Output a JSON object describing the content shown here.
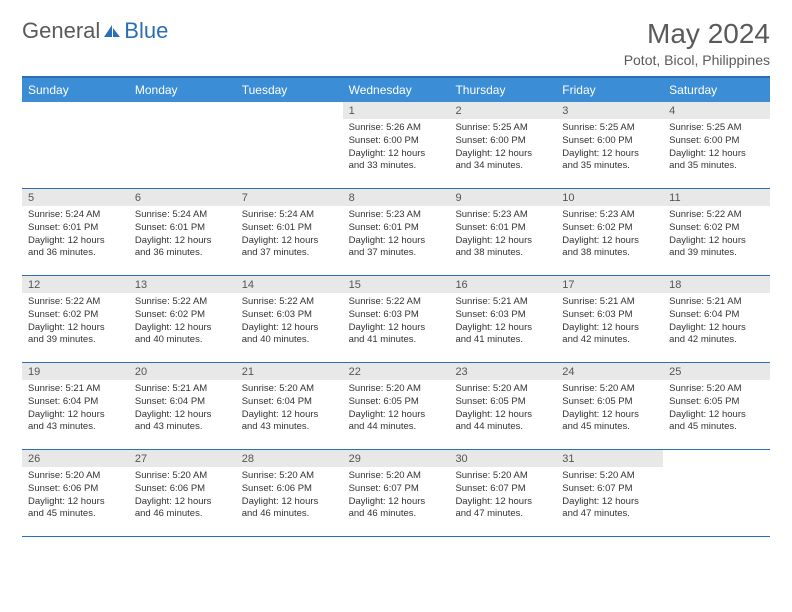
{
  "brand": {
    "text1": "General",
    "text2": "Blue"
  },
  "title": "May 2024",
  "location": "Potot, Bicol, Philippines",
  "colors": {
    "header_bar": "#3b8dd6",
    "border": "#2a6fb5",
    "daynum_bg": "#e8e8e8",
    "text": "#333333",
    "muted": "#5a5a5a"
  },
  "day_headers": [
    "Sunday",
    "Monday",
    "Tuesday",
    "Wednesday",
    "Thursday",
    "Friday",
    "Saturday"
  ],
  "weeks": [
    [
      {
        "n": "",
        "sunrise": "",
        "sunset": "",
        "daylight": ""
      },
      {
        "n": "",
        "sunrise": "",
        "sunset": "",
        "daylight": ""
      },
      {
        "n": "",
        "sunrise": "",
        "sunset": "",
        "daylight": ""
      },
      {
        "n": "1",
        "sunrise": "Sunrise: 5:26 AM",
        "sunset": "Sunset: 6:00 PM",
        "daylight": "Daylight: 12 hours and 33 minutes."
      },
      {
        "n": "2",
        "sunrise": "Sunrise: 5:25 AM",
        "sunset": "Sunset: 6:00 PM",
        "daylight": "Daylight: 12 hours and 34 minutes."
      },
      {
        "n": "3",
        "sunrise": "Sunrise: 5:25 AM",
        "sunset": "Sunset: 6:00 PM",
        "daylight": "Daylight: 12 hours and 35 minutes."
      },
      {
        "n": "4",
        "sunrise": "Sunrise: 5:25 AM",
        "sunset": "Sunset: 6:00 PM",
        "daylight": "Daylight: 12 hours and 35 minutes."
      }
    ],
    [
      {
        "n": "5",
        "sunrise": "Sunrise: 5:24 AM",
        "sunset": "Sunset: 6:01 PM",
        "daylight": "Daylight: 12 hours and 36 minutes."
      },
      {
        "n": "6",
        "sunrise": "Sunrise: 5:24 AM",
        "sunset": "Sunset: 6:01 PM",
        "daylight": "Daylight: 12 hours and 36 minutes."
      },
      {
        "n": "7",
        "sunrise": "Sunrise: 5:24 AM",
        "sunset": "Sunset: 6:01 PM",
        "daylight": "Daylight: 12 hours and 37 minutes."
      },
      {
        "n": "8",
        "sunrise": "Sunrise: 5:23 AM",
        "sunset": "Sunset: 6:01 PM",
        "daylight": "Daylight: 12 hours and 37 minutes."
      },
      {
        "n": "9",
        "sunrise": "Sunrise: 5:23 AM",
        "sunset": "Sunset: 6:01 PM",
        "daylight": "Daylight: 12 hours and 38 minutes."
      },
      {
        "n": "10",
        "sunrise": "Sunrise: 5:23 AM",
        "sunset": "Sunset: 6:02 PM",
        "daylight": "Daylight: 12 hours and 38 minutes."
      },
      {
        "n": "11",
        "sunrise": "Sunrise: 5:22 AM",
        "sunset": "Sunset: 6:02 PM",
        "daylight": "Daylight: 12 hours and 39 minutes."
      }
    ],
    [
      {
        "n": "12",
        "sunrise": "Sunrise: 5:22 AM",
        "sunset": "Sunset: 6:02 PM",
        "daylight": "Daylight: 12 hours and 39 minutes."
      },
      {
        "n": "13",
        "sunrise": "Sunrise: 5:22 AM",
        "sunset": "Sunset: 6:02 PM",
        "daylight": "Daylight: 12 hours and 40 minutes."
      },
      {
        "n": "14",
        "sunrise": "Sunrise: 5:22 AM",
        "sunset": "Sunset: 6:03 PM",
        "daylight": "Daylight: 12 hours and 40 minutes."
      },
      {
        "n": "15",
        "sunrise": "Sunrise: 5:22 AM",
        "sunset": "Sunset: 6:03 PM",
        "daylight": "Daylight: 12 hours and 41 minutes."
      },
      {
        "n": "16",
        "sunrise": "Sunrise: 5:21 AM",
        "sunset": "Sunset: 6:03 PM",
        "daylight": "Daylight: 12 hours and 41 minutes."
      },
      {
        "n": "17",
        "sunrise": "Sunrise: 5:21 AM",
        "sunset": "Sunset: 6:03 PM",
        "daylight": "Daylight: 12 hours and 42 minutes."
      },
      {
        "n": "18",
        "sunrise": "Sunrise: 5:21 AM",
        "sunset": "Sunset: 6:04 PM",
        "daylight": "Daylight: 12 hours and 42 minutes."
      }
    ],
    [
      {
        "n": "19",
        "sunrise": "Sunrise: 5:21 AM",
        "sunset": "Sunset: 6:04 PM",
        "daylight": "Daylight: 12 hours and 43 minutes."
      },
      {
        "n": "20",
        "sunrise": "Sunrise: 5:21 AM",
        "sunset": "Sunset: 6:04 PM",
        "daylight": "Daylight: 12 hours and 43 minutes."
      },
      {
        "n": "21",
        "sunrise": "Sunrise: 5:20 AM",
        "sunset": "Sunset: 6:04 PM",
        "daylight": "Daylight: 12 hours and 43 minutes."
      },
      {
        "n": "22",
        "sunrise": "Sunrise: 5:20 AM",
        "sunset": "Sunset: 6:05 PM",
        "daylight": "Daylight: 12 hours and 44 minutes."
      },
      {
        "n": "23",
        "sunrise": "Sunrise: 5:20 AM",
        "sunset": "Sunset: 6:05 PM",
        "daylight": "Daylight: 12 hours and 44 minutes."
      },
      {
        "n": "24",
        "sunrise": "Sunrise: 5:20 AM",
        "sunset": "Sunset: 6:05 PM",
        "daylight": "Daylight: 12 hours and 45 minutes."
      },
      {
        "n": "25",
        "sunrise": "Sunrise: 5:20 AM",
        "sunset": "Sunset: 6:05 PM",
        "daylight": "Daylight: 12 hours and 45 minutes."
      }
    ],
    [
      {
        "n": "26",
        "sunrise": "Sunrise: 5:20 AM",
        "sunset": "Sunset: 6:06 PM",
        "daylight": "Daylight: 12 hours and 45 minutes."
      },
      {
        "n": "27",
        "sunrise": "Sunrise: 5:20 AM",
        "sunset": "Sunset: 6:06 PM",
        "daylight": "Daylight: 12 hours and 46 minutes."
      },
      {
        "n": "28",
        "sunrise": "Sunrise: 5:20 AM",
        "sunset": "Sunset: 6:06 PM",
        "daylight": "Daylight: 12 hours and 46 minutes."
      },
      {
        "n": "29",
        "sunrise": "Sunrise: 5:20 AM",
        "sunset": "Sunset: 6:07 PM",
        "daylight": "Daylight: 12 hours and 46 minutes."
      },
      {
        "n": "30",
        "sunrise": "Sunrise: 5:20 AM",
        "sunset": "Sunset: 6:07 PM",
        "daylight": "Daylight: 12 hours and 47 minutes."
      },
      {
        "n": "31",
        "sunrise": "Sunrise: 5:20 AM",
        "sunset": "Sunset: 6:07 PM",
        "daylight": "Daylight: 12 hours and 47 minutes."
      },
      {
        "n": "",
        "sunrise": "",
        "sunset": "",
        "daylight": ""
      }
    ]
  ]
}
